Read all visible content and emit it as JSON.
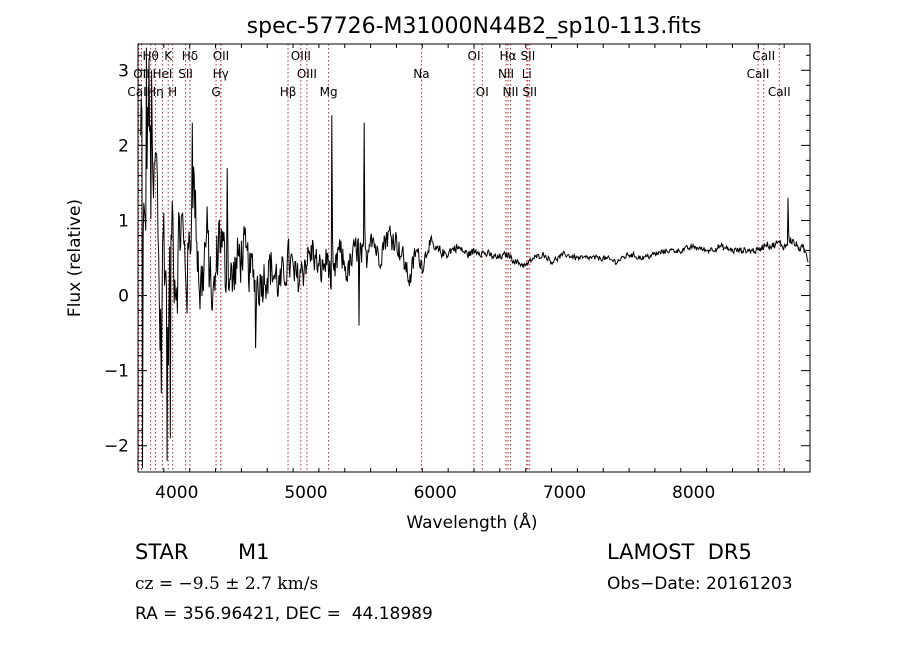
{
  "chart_data": {
    "type": "line",
    "title": "spec-57726-M31000N44B2_sp10-113.fits",
    "xlabel": "Wavelength (Å)",
    "ylabel": "Flux (relative)",
    "xlim": [
      3700,
      8900
    ],
    "ylim": [
      -2.35,
      3.35
    ],
    "xticks": [
      4000,
      5000,
      6000,
      7000,
      8000
    ],
    "yticks": [
      -2,
      -1,
      0,
      1,
      2,
      3
    ],
    "grid": false,
    "spectrum_anchors": {
      "x": [
        3720,
        3750,
        3780,
        3810,
        3840,
        3870,
        3900,
        3930,
        3960,
        3990,
        4030,
        4080,
        4130,
        4180,
        4230,
        4280,
        4330,
        4380,
        4430,
        4500,
        4580,
        4650,
        4720,
        4800,
        4860,
        4920,
        4980,
        5050,
        5100,
        5170,
        5200,
        5250,
        5320,
        5400,
        5460,
        5500,
        5560,
        5620,
        5680,
        5750,
        5800,
        5850,
        5900,
        5950,
        6000,
        6080,
        6160,
        6250,
        6320,
        6400,
        6480,
        6560,
        6620,
        6700,
        6760,
        6840,
        6900,
        7000,
        7100,
        7200,
        7300,
        7400,
        7500,
        7600,
        7700,
        7800,
        7900,
        8000,
        8100,
        8200,
        8300,
        8400,
        8500,
        8560,
        8600,
        8650,
        8700,
        8750,
        8800,
        8850,
        8880
      ],
      "y": [
        2.6,
        0.6,
        2.7,
        0.8,
        1.9,
        -0.3,
        0.9,
        -0.6,
        1.2,
        0.1,
        1.0,
        0.2,
        1.5,
        0.0,
        0.8,
        -0.2,
        0.9,
        0.3,
        0.2,
        0.6,
        0.3,
        0.2,
        0.4,
        0.1,
        0.5,
        0.2,
        0.4,
        0.6,
        0.3,
        0.5,
        0.0,
        0.6,
        0.3,
        0.7,
        0.4,
        0.9,
        0.5,
        0.8,
        0.8,
        0.5,
        0.2,
        0.6,
        0.4,
        0.7,
        0.6,
        0.55,
        0.65,
        0.55,
        0.6,
        0.55,
        0.5,
        0.55,
        0.45,
        0.4,
        0.5,
        0.55,
        0.45,
        0.55,
        0.5,
        0.5,
        0.5,
        0.45,
        0.55,
        0.5,
        0.55,
        0.6,
        0.6,
        0.65,
        0.6,
        0.65,
        0.6,
        0.6,
        0.6,
        0.7,
        0.65,
        0.7,
        0.65,
        0.75,
        0.65,
        0.6,
        0.5
      ],
      "noise": [
        1.2,
        1.2,
        1.2,
        1.2,
        1.1,
        1.1,
        1.0,
        1.0,
        0.9,
        0.85,
        0.8,
        0.75,
        0.7,
        0.7,
        0.65,
        0.6,
        0.6,
        0.55,
        0.55,
        0.5,
        0.45,
        0.45,
        0.42,
        0.4,
        0.4,
        0.38,
        0.36,
        0.34,
        0.32,
        0.3,
        0.3,
        0.3,
        0.28,
        0.28,
        0.26,
        0.26,
        0.25,
        0.25,
        0.25,
        0.22,
        0.2,
        0.2,
        0.16,
        0.14,
        0.12,
        0.1,
        0.09,
        0.08,
        0.08,
        0.07,
        0.07,
        0.06,
        0.06,
        0.06,
        0.05,
        0.05,
        0.05,
        0.05,
        0.05,
        0.05,
        0.05,
        0.05,
        0.05,
        0.05,
        0.05,
        0.05,
        0.05,
        0.05,
        0.05,
        0.06,
        0.06,
        0.06,
        0.06,
        0.07,
        0.07,
        0.07,
        0.07,
        0.08,
        0.08,
        0.09,
        0.1
      ]
    },
    "lines": [
      {
        "label": "Hθ",
        "x": 3798,
        "row": 0
      },
      {
        "label": "K",
        "x": 3934,
        "row": 0
      },
      {
        "label": "Hδ",
        "x": 4102,
        "row": 0
      },
      {
        "label": "OII",
        "x": 4342,
        "row": 0
      },
      {
        "label": "OIII",
        "x": 4960,
        "row": 0
      },
      {
        "label": "OI",
        "x": 6300,
        "row": 0
      },
      {
        "label": "Hα",
        "x": 6563,
        "row": 0
      },
      {
        "label": "SII",
        "x": 6717,
        "row": 0
      },
      {
        "label": "CaII",
        "x": 8542,
        "row": 0
      },
      {
        "label": "OII",
        "x": 3727,
        "row": 1
      },
      {
        "label": "HeI",
        "x": 3889,
        "row": 1
      },
      {
        "label": "SII",
        "x": 4068,
        "row": 1
      },
      {
        "label": "Hγ",
        "x": 4340,
        "row": 1
      },
      {
        "label": "OIII",
        "x": 5007,
        "row": 1
      },
      {
        "label": "NII",
        "x": 6548,
        "row": 1
      },
      {
        "label": "Li",
        "x": 6708,
        "row": 1
      },
      {
        "label": "CaII",
        "x": 8498,
        "row": 1
      },
      {
        "label": "CaII",
        "x": 3706,
        "row": 2
      },
      {
        "label": "Hη",
        "x": 3835,
        "row": 2
      },
      {
        "label": "H",
        "x": 3968,
        "row": 2
      },
      {
        "label": "G",
        "x": 4304,
        "row": 2
      },
      {
        "label": "Hβ",
        "x": 4861,
        "row": 2
      },
      {
        "label": "Mg",
        "x": 5175,
        "row": 2
      },
      {
        "label": "Na",
        "x": 5893,
        "row": 1
      },
      {
        "label": "OI",
        "x": 6364,
        "row": 2
      },
      {
        "label": "NII",
        "x": 6583,
        "row": 2
      },
      {
        "label": "SII",
        "x": 6731,
        "row": 2
      },
      {
        "label": "CaII",
        "x": 8662,
        "row": 2
      }
    ]
  },
  "info": {
    "obj_class": "STAR",
    "obj_subclass": "M1",
    "survey": "LAMOST  DR5",
    "cz": "cz = −9.5 ± 2.7 km/s",
    "obs_date": "Obs−Date: 20161203",
    "radec": "RA = 356.96421, DEC =  44.18989"
  },
  "colors": {
    "spectrum": "#000000",
    "line_marker": "#b03030",
    "axes": "#000000",
    "background": "#ffffff"
  }
}
